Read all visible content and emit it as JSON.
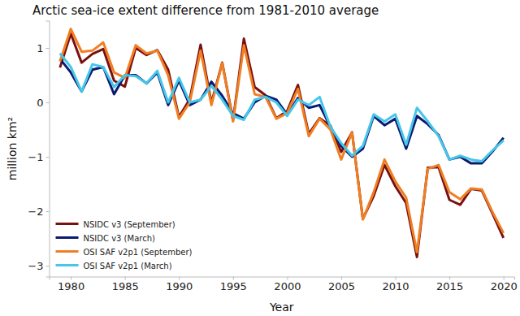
{
  "chart_data": {
    "type": "line",
    "title": "Arctic sea-ice extent difference from 1981-2010 average",
    "x_label": "Year",
    "y_label": "million km²",
    "x": [
      1979,
      1980,
      1981,
      1982,
      1983,
      1984,
      1985,
      1986,
      1987,
      1988,
      1989,
      1990,
      1991,
      1992,
      1993,
      1994,
      1995,
      1996,
      1997,
      1998,
      1999,
      2000,
      2001,
      2002,
      2003,
      2004,
      2005,
      2006,
      2007,
      2008,
      2009,
      2010,
      2011,
      2012,
      2013,
      2014,
      2015,
      2016,
      2017,
      2018,
      2019,
      2020
    ],
    "xlim": [
      1978,
      2021
    ],
    "xticks": [
      1980,
      1985,
      1990,
      1995,
      2000,
      2005,
      2010,
      2015,
      2020
    ],
    "ylim": [
      -3.2,
      1.5
    ],
    "yticks": [
      {
        "value": -3,
        "label": "−3"
      },
      {
        "value": -2,
        "label": "−2"
      },
      {
        "value": -1,
        "label": "−1"
      },
      0,
      1
    ],
    "grid": false,
    "legend": "lower left",
    "series": [
      {
        "name": "NSIDC v3 (September)",
        "color": "#7b1010",
        "values": [
          0.64,
          1.26,
          0.73,
          0.89,
          0.98,
          0.4,
          0.29,
          1.0,
          0.87,
          0.96,
          0.6,
          -0.27,
          0.06,
          1.06,
          -0.01,
          0.73,
          -0.33,
          1.17,
          0.28,
          0.13,
          -0.29,
          -0.16,
          0.32,
          -0.58,
          -0.29,
          -0.43,
          -0.91,
          -0.55,
          -2.14,
          -1.72,
          -1.15,
          -1.54,
          -1.85,
          -2.84,
          -1.2,
          -1.19,
          -1.79,
          -1.88,
          -1.59,
          -1.62,
          -2.05,
          -2.49
        ]
      },
      {
        "name": "NSIDC v3 (March)",
        "color": "#0b1a6e",
        "values": [
          0.8,
          0.55,
          0.2,
          0.6,
          0.65,
          0.15,
          0.5,
          0.5,
          0.35,
          0.55,
          -0.05,
          0.4,
          -0.05,
          0.05,
          0.38,
          0.12,
          -0.2,
          -0.3,
          0.0,
          0.12,
          0.05,
          -0.22,
          0.08,
          -0.1,
          -0.05,
          -0.45,
          -0.8,
          -1.0,
          -0.85,
          -0.25,
          -0.42,
          -0.3,
          -0.85,
          -0.25,
          -0.4,
          -0.6,
          -1.05,
          -1.0,
          -1.12,
          -1.12,
          -0.9,
          -0.65
        ]
      },
      {
        "name": "OSI SAF v2p1 (September)",
        "color": "#f07f23",
        "values": [
          0.75,
          1.35,
          0.93,
          0.95,
          1.1,
          0.55,
          0.45,
          1.05,
          0.9,
          0.95,
          0.5,
          -0.3,
          0.0,
          0.95,
          -0.05,
          0.72,
          -0.35,
          1.05,
          0.15,
          0.1,
          -0.3,
          -0.2,
          0.25,
          -0.62,
          -0.3,
          -0.5,
          -1.05,
          -0.55,
          -2.15,
          -1.65,
          -1.05,
          -1.45,
          -1.75,
          -2.75,
          -1.22,
          -1.15,
          -1.65,
          -1.78,
          -1.58,
          -1.6,
          -2.02,
          -2.4
        ]
      },
      {
        "name": "OSI SAF v2p1 (March)",
        "color": "#45c6eb",
        "values": [
          0.9,
          0.65,
          0.2,
          0.7,
          0.65,
          0.28,
          0.5,
          0.48,
          0.35,
          0.58,
          0.0,
          0.45,
          0.0,
          0.05,
          0.3,
          0.05,
          -0.25,
          -0.32,
          0.05,
          0.1,
          0.0,
          -0.25,
          0.05,
          -0.05,
          0.1,
          -0.45,
          -0.75,
          -0.98,
          -0.8,
          -0.22,
          -0.35,
          -0.22,
          -0.78,
          -0.1,
          -0.35,
          -0.62,
          -1.05,
          -0.98,
          -1.05,
          -1.08,
          -0.88,
          -0.7
        ]
      }
    ]
  }
}
